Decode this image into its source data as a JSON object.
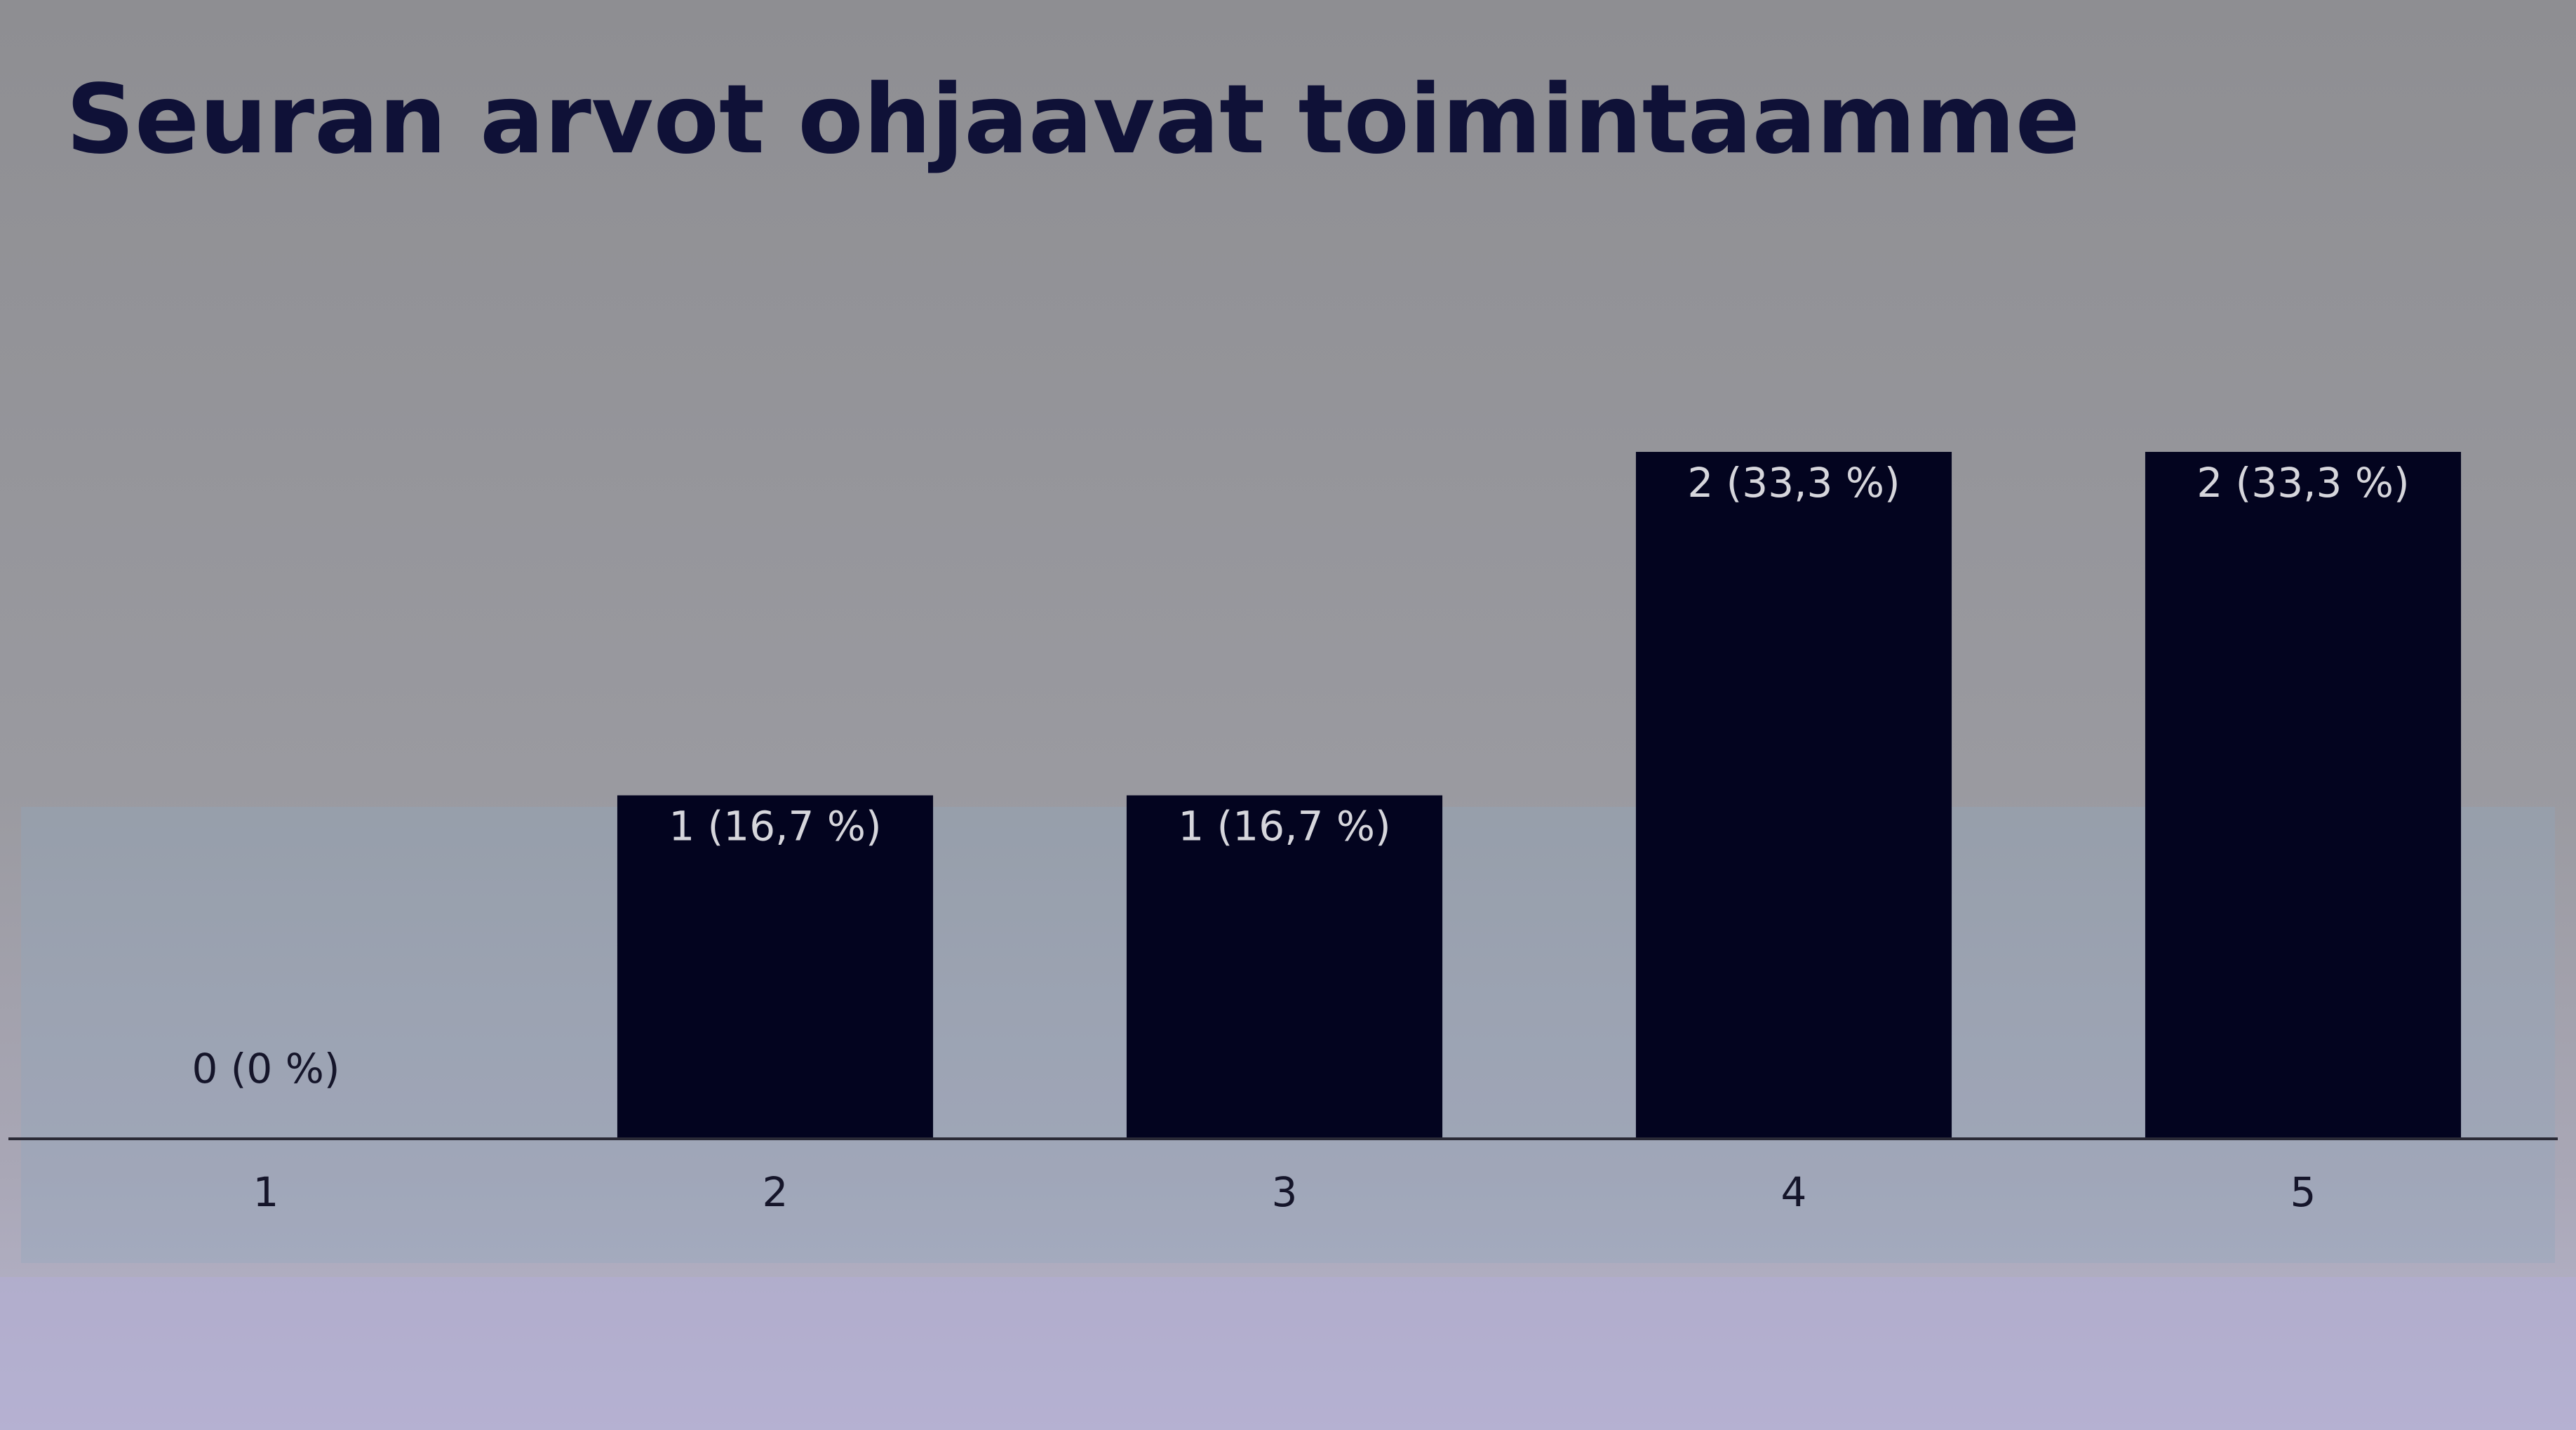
{
  "chart_data": {
    "type": "bar",
    "title": "Seuran arvot ohjaavat toimintaamme",
    "categories": [
      "1",
      "2",
      "3",
      "4",
      "5"
    ],
    "values": [
      0,
      1,
      1,
      2,
      2
    ],
    "value_labels": [
      "0 (0 %)",
      "1 (16,7 %)",
      "1 (16,7 %)",
      "2 (33,3 %)",
      "2 (33,3 %)"
    ],
    "color": "#03041f",
    "ylim": [
      0,
      2
    ]
  }
}
